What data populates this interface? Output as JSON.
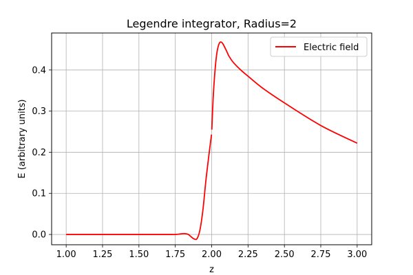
{
  "chart_data": {
    "type": "line",
    "title": "Legendre integrator, Radius=2",
    "xlabel": "z",
    "ylabel": "E (arbitrary units)",
    "xlim": [
      0.9,
      3.1
    ],
    "ylim": [
      -0.025,
      0.49
    ],
    "x_ticks": [
      1.0,
      1.25,
      1.5,
      1.75,
      2.0,
      2.25,
      2.5,
      2.75,
      3.0
    ],
    "x_tick_labels": [
      "1.00",
      "1.25",
      "1.50",
      "1.75",
      "2.00",
      "2.25",
      "2.50",
      "2.75",
      "3.00"
    ],
    "y_ticks": [
      0.0,
      0.1,
      0.2,
      0.3,
      0.4
    ],
    "y_tick_labels": [
      "0.0",
      "0.1",
      "0.2",
      "0.3",
      "0.4"
    ],
    "grid": true,
    "legend_position": "top-right",
    "series": [
      {
        "name": "Electric field",
        "color": "#ff0000",
        "segments": [
          {
            "x": [
              1.0,
              1.25,
              1.5,
              1.7,
              1.75,
              1.78,
              1.8,
              1.82,
              1.84,
              1.86,
              1.88,
              1.9,
              1.92,
              1.94,
              1.96,
              1.98,
              1.999
            ],
            "y": [
              0.0,
              0.0,
              0.0,
              0.0,
              0.0,
              0.001,
              0.002,
              0.002,
              0.0,
              -0.006,
              -0.011,
              -0.01,
              0.012,
              0.06,
              0.13,
              0.19,
              0.243
            ]
          },
          {
            "x": [
              2.001,
              2.01,
              2.02,
              2.03,
              2.04,
              2.05,
              2.06,
              2.07,
              2.08,
              2.1,
              2.12,
              2.15,
              2.2,
              2.25,
              2.35,
              2.5,
              2.75,
              3.0
            ],
            "y": [
              0.255,
              0.33,
              0.385,
              0.425,
              0.45,
              0.463,
              0.468,
              0.467,
              0.462,
              0.448,
              0.433,
              0.418,
              0.4,
              0.385,
              0.356,
              0.32,
              0.265,
              0.222
            ]
          }
        ]
      }
    ]
  }
}
